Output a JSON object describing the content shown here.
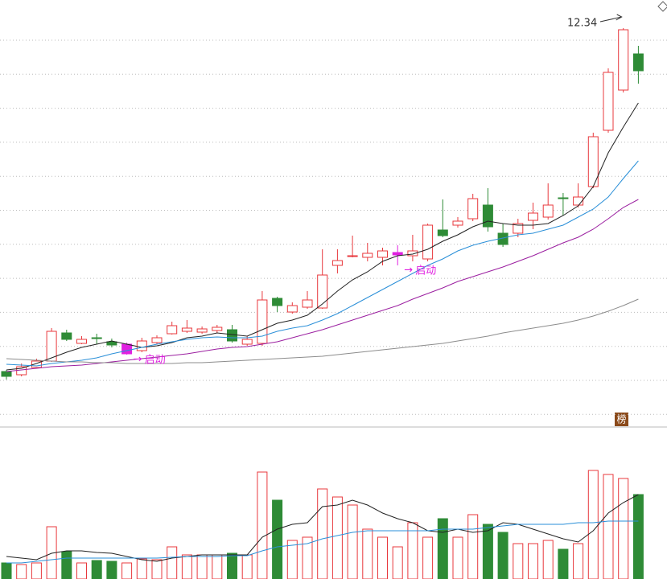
{
  "chart_data": [
    {
      "type": "candlestick",
      "open": [
        3.8,
        3.72,
        3.9,
        4.06,
        4.76,
        4.5,
        4.64,
        4.54,
        4.24,
        4.32,
        4.52,
        4.74,
        4.8,
        4.78,
        4.82,
        4.84,
        4.48,
        4.5,
        5.62,
        5.28,
        5.4,
        5.38,
        6.44,
        6.68,
        6.64,
        6.64,
        6.7,
        6.68,
        6.6,
        7.32,
        7.44,
        7.6,
        7.94,
        7.24,
        7.24,
        7.56,
        7.64,
        8.12,
        7.94,
        8.4,
        9.8,
        10.8,
        11.7
      ],
      "high": [
        3.84,
        4.0,
        4.12,
        4.88,
        4.84,
        4.68,
        4.74,
        4.62,
        4.52,
        4.64,
        4.7,
        5.04,
        5.08,
        4.92,
        4.96,
        4.96,
        4.68,
        5.8,
        5.66,
        5.52,
        5.8,
        6.84,
        6.84,
        7.18,
        7.0,
        6.88,
        6.94,
        7.2,
        7.48,
        8.08,
        7.64,
        8.22,
        8.36,
        7.48,
        7.6,
        8.0,
        8.48,
        8.24,
        8.48,
        9.74,
        11.34,
        12.34,
        11.9
      ],
      "low": [
        3.6,
        3.68,
        3.88,
        4.04,
        4.56,
        4.48,
        4.48,
        4.4,
        4.22,
        4.28,
        4.48,
        4.72,
        4.76,
        4.74,
        4.76,
        4.52,
        4.44,
        4.44,
        5.28,
        5.24,
        5.36,
        5.36,
        6.24,
        6.64,
        6.54,
        6.44,
        6.44,
        6.54,
        6.54,
        7.14,
        7.38,
        7.54,
        7.28,
        6.9,
        7.14,
        7.34,
        7.58,
        7.68,
        7.88,
        8.36,
        9.74,
        10.74,
        10.96
      ],
      "close": [
        3.68,
        3.92,
        4.06,
        4.8,
        4.6,
        4.6,
        4.62,
        4.46,
        4.48,
        4.56,
        4.64,
        4.94,
        4.88,
        4.86,
        4.9,
        4.56,
        4.6,
        5.58,
        5.44,
        5.44,
        5.58,
        6.2,
        6.56,
        6.68,
        6.74,
        6.8,
        6.76,
        6.8,
        7.44,
        7.18,
        7.54,
        8.1,
        7.4,
        6.96,
        7.48,
        7.74,
        7.94,
        8.1,
        8.14,
        9.64,
        11.24,
        12.3,
        11.28
      ],
      "up_color": "#e8383d",
      "down_color": "#2e8b36",
      "ylim": [
        2.44,
        13.04
      ],
      "lines": [
        {
          "color": "#222222",
          "values": [
            3.84,
            3.88,
            4.0,
            4.14,
            4.28,
            4.4,
            4.48,
            4.56,
            4.48,
            4.4,
            4.44,
            4.52,
            4.64,
            4.68,
            4.76,
            4.72,
            4.68,
            4.84,
            5.0,
            5.08,
            5.2,
            5.48,
            5.8,
            6.08,
            6.28,
            6.54,
            6.68,
            6.72,
            6.84,
            7.04,
            7.2,
            7.4,
            7.54,
            7.48,
            7.44,
            7.44,
            7.48,
            7.68,
            7.92,
            8.4,
            9.24,
            9.88,
            10.48
          ]
        },
        {
          "color": "#2a8fd8",
          "values": [
            3.98,
            3.96,
            3.94,
            4.0,
            4.04,
            4.08,
            4.14,
            4.24,
            4.32,
            4.4,
            4.48,
            4.54,
            4.6,
            4.64,
            4.66,
            4.64,
            4.64,
            4.68,
            4.8,
            4.88,
            4.94,
            5.08,
            5.24,
            5.44,
            5.64,
            5.84,
            6.04,
            6.24,
            6.44,
            6.6,
            6.8,
            6.94,
            7.04,
            7.12,
            7.2,
            7.24,
            7.34,
            7.44,
            7.64,
            7.84,
            8.14,
            8.6,
            9.04
          ]
        },
        {
          "color": "#9b1fa0",
          "values": [
            3.8,
            3.84,
            3.88,
            3.92,
            3.94,
            3.96,
            4.0,
            4.04,
            4.08,
            4.12,
            4.16,
            4.2,
            4.24,
            4.3,
            4.36,
            4.4,
            4.42,
            4.48,
            4.54,
            4.64,
            4.74,
            4.84,
            4.96,
            5.08,
            5.2,
            5.32,
            5.44,
            5.6,
            5.74,
            5.88,
            6.04,
            6.16,
            6.28,
            6.4,
            6.54,
            6.68,
            6.84,
            7.0,
            7.14,
            7.34,
            7.6,
            7.88,
            8.08
          ]
        },
        {
          "color": "#8c8c8c",
          "values": [
            4.12,
            4.1,
            4.08,
            4.06,
            4.04,
            4.04,
            4.02,
            4.02,
            4.0,
            4.0,
            4.0,
            4.0,
            4.02,
            4.02,
            4.04,
            4.06,
            4.08,
            4.1,
            4.12,
            4.14,
            4.16,
            4.18,
            4.22,
            4.26,
            4.3,
            4.34,
            4.38,
            4.42,
            4.46,
            4.5,
            4.56,
            4.62,
            4.68,
            4.76,
            4.82,
            4.88,
            4.94,
            5.0,
            5.08,
            5.18,
            5.3,
            5.44,
            5.6
          ]
        }
      ],
      "annotations": [
        "启动",
        "启动"
      ],
      "badge": "榜"
    },
    {
      "type": "bar",
      "values": [
        20,
        18,
        20,
        65,
        34,
        20,
        23,
        22,
        20,
        25,
        24,
        40,
        30,
        30,
        30,
        32,
        30,
        133,
        98,
        48,
        52,
        112,
        102,
        92,
        62,
        52,
        40,
        70,
        52,
        75,
        52,
        80,
        68,
        58,
        44,
        44,
        48,
        37,
        44,
        135,
        130,
        125,
        105
      ],
      "ylim": [
        0,
        185
      ],
      "lines": [
        {
          "color": "#222222",
          "values": [
            28,
            26,
            24,
            32,
            35,
            35,
            33,
            32,
            28,
            24,
            22,
            26,
            28,
            30,
            30,
            30,
            30,
            52,
            62,
            68,
            70,
            90,
            92,
            98,
            92,
            82,
            75,
            70,
            60,
            58,
            62,
            58,
            60,
            70,
            68,
            62,
            56,
            50,
            46,
            60,
            82,
            95,
            105
          ]
        },
        {
          "color": "#2a8fd8",
          "values": [
            20,
            20,
            22,
            24,
            26,
            26,
            26,
            26,
            26,
            26,
            26,
            27,
            28,
            28,
            28,
            29,
            29,
            35,
            40,
            42,
            44,
            50,
            54,
            58,
            60,
            60,
            60,
            60,
            60,
            62,
            62,
            62,
            64,
            66,
            68,
            68,
            68,
            68,
            70,
            70,
            72,
            72,
            72
          ]
        }
      ]
    }
  ]
}
